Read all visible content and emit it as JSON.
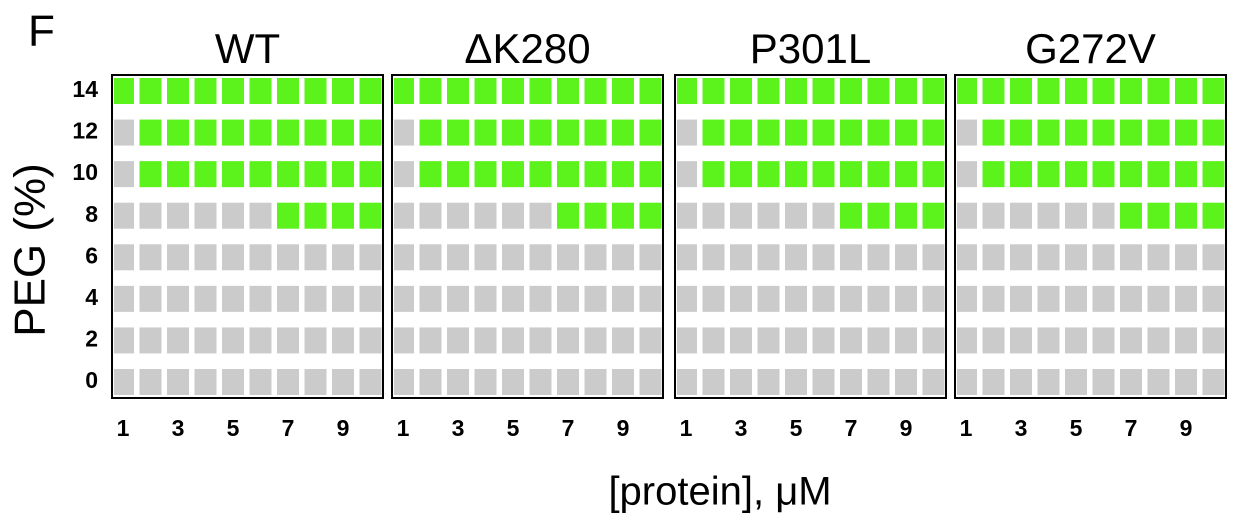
{
  "figure": {
    "panel_label": "F",
    "x_label": "[protein], μM",
    "y_label": "PEG (%)",
    "colors": [
      "#cbcbcb",
      "#5cf21c"
    ]
  },
  "chart_data": [
    {
      "type": "heatmap",
      "title": "WT",
      "x": [
        1,
        2,
        3,
        4,
        5,
        6,
        7,
        8,
        9,
        10
      ],
      "y": [
        0,
        2,
        4,
        6,
        8,
        10,
        12,
        14
      ],
      "xticks": [
        1,
        3,
        5,
        7,
        9
      ],
      "yticks": [
        0,
        2,
        4,
        6,
        8,
        10,
        12,
        14
      ],
      "values": [
        [
          0,
          0,
          0,
          0,
          0,
          0,
          0,
          0,
          0,
          0
        ],
        [
          0,
          0,
          0,
          0,
          0,
          0,
          0,
          0,
          0,
          0
        ],
        [
          0,
          0,
          0,
          0,
          0,
          0,
          0,
          0,
          0,
          0
        ],
        [
          0,
          0,
          0,
          0,
          0,
          0,
          0,
          0,
          0,
          0
        ],
        [
          0,
          0,
          0,
          0,
          0,
          0,
          1,
          1,
          1,
          1
        ],
        [
          0,
          1,
          1,
          1,
          1,
          1,
          1,
          1,
          1,
          1
        ],
        [
          0,
          1,
          1,
          1,
          1,
          1,
          1,
          1,
          1,
          1
        ],
        [
          1,
          1,
          1,
          1,
          1,
          1,
          1,
          1,
          1,
          1
        ]
      ]
    },
    {
      "type": "heatmap",
      "title": "ΔK280",
      "x": [
        1,
        2,
        3,
        4,
        5,
        6,
        7,
        8,
        9,
        10
      ],
      "y": [
        0,
        2,
        4,
        6,
        8,
        10,
        12,
        14
      ],
      "xticks": [
        1,
        3,
        5,
        7,
        9
      ],
      "values": [
        [
          0,
          0,
          0,
          0,
          0,
          0,
          0,
          0,
          0,
          0
        ],
        [
          0,
          0,
          0,
          0,
          0,
          0,
          0,
          0,
          0,
          0
        ],
        [
          0,
          0,
          0,
          0,
          0,
          0,
          0,
          0,
          0,
          0
        ],
        [
          0,
          0,
          0,
          0,
          0,
          0,
          0,
          0,
          0,
          0
        ],
        [
          0,
          0,
          0,
          0,
          0,
          0,
          1,
          1,
          1,
          1
        ],
        [
          0,
          1,
          1,
          1,
          1,
          1,
          1,
          1,
          1,
          1
        ],
        [
          0,
          1,
          1,
          1,
          1,
          1,
          1,
          1,
          1,
          1
        ],
        [
          1,
          1,
          1,
          1,
          1,
          1,
          1,
          1,
          1,
          1
        ]
      ]
    },
    {
      "type": "heatmap",
      "title": "P301L",
      "x": [
        1,
        2,
        3,
        4,
        5,
        6,
        7,
        8,
        9,
        10
      ],
      "y": [
        0,
        2,
        4,
        6,
        8,
        10,
        12,
        14
      ],
      "xticks": [
        1,
        3,
        5,
        7,
        9
      ],
      "values": [
        [
          0,
          0,
          0,
          0,
          0,
          0,
          0,
          0,
          0,
          0
        ],
        [
          0,
          0,
          0,
          0,
          0,
          0,
          0,
          0,
          0,
          0
        ],
        [
          0,
          0,
          0,
          0,
          0,
          0,
          0,
          0,
          0,
          0
        ],
        [
          0,
          0,
          0,
          0,
          0,
          0,
          0,
          0,
          0,
          0
        ],
        [
          0,
          0,
          0,
          0,
          0,
          0,
          1,
          1,
          1,
          1
        ],
        [
          0,
          1,
          1,
          1,
          1,
          1,
          1,
          1,
          1,
          1
        ],
        [
          0,
          1,
          1,
          1,
          1,
          1,
          1,
          1,
          1,
          1
        ],
        [
          1,
          1,
          1,
          1,
          1,
          1,
          1,
          1,
          1,
          1
        ]
      ]
    },
    {
      "type": "heatmap",
      "title": "G272V",
      "x": [
        1,
        2,
        3,
        4,
        5,
        6,
        7,
        8,
        9,
        10
      ],
      "y": [
        0,
        2,
        4,
        6,
        8,
        10,
        12,
        14
      ],
      "xticks": [
        1,
        3,
        5,
        7,
        9
      ],
      "values": [
        [
          0,
          0,
          0,
          0,
          0,
          0,
          0,
          0,
          0,
          0
        ],
        [
          0,
          0,
          0,
          0,
          0,
          0,
          0,
          0,
          0,
          0
        ],
        [
          0,
          0,
          0,
          0,
          0,
          0,
          0,
          0,
          0,
          0
        ],
        [
          0,
          0,
          0,
          0,
          0,
          0,
          0,
          0,
          0,
          0
        ],
        [
          0,
          0,
          0,
          0,
          0,
          0,
          1,
          1,
          1,
          1
        ],
        [
          0,
          1,
          1,
          1,
          1,
          1,
          1,
          1,
          1,
          1
        ],
        [
          0,
          1,
          1,
          1,
          1,
          1,
          1,
          1,
          1,
          1
        ],
        [
          1,
          1,
          1,
          1,
          1,
          1,
          1,
          1,
          1,
          1
        ]
      ]
    }
  ]
}
